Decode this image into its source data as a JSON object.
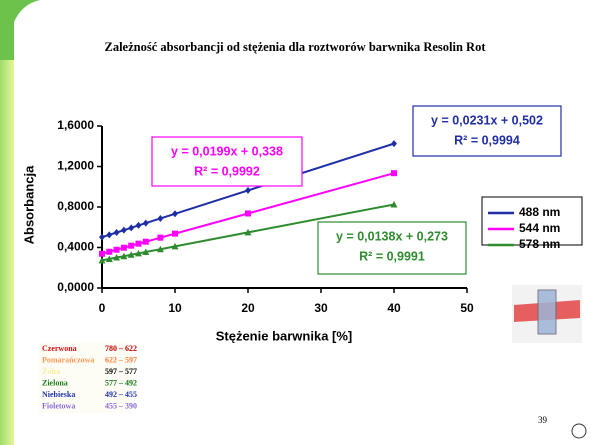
{
  "chart_data": {
    "type": "line",
    "title": "Zależność absorbancji od stężenia dla roztworów barwnika Resolin Rot",
    "xlabel": "Stężenie barwnika [%]",
    "ylabel": "Absorbancja",
    "x": [
      0,
      1,
      2,
      3,
      4,
      5,
      6,
      8,
      10,
      20,
      40
    ],
    "series": [
      {
        "name": "488 nm",
        "color": "#1f2ea6",
        "marker": "diamond",
        "values": [
          0.502,
          0.525,
          0.548,
          0.571,
          0.594,
          0.618,
          0.641,
          0.687,
          0.733,
          0.964,
          1.426
        ]
      },
      {
        "name": "544 nm",
        "color": "#ff00ff",
        "marker": "square",
        "values": [
          0.338,
          0.358,
          0.378,
          0.398,
          0.418,
          0.438,
          0.457,
          0.497,
          0.537,
          0.736,
          1.134
        ]
      },
      {
        "name": "578 nm",
        "color": "#2e8b2e",
        "marker": "triangle",
        "values": [
          0.273,
          0.287,
          0.301,
          0.314,
          0.328,
          0.342,
          0.356,
          0.383,
          0.411,
          0.549,
          0.825
        ]
      }
    ],
    "xlim": [
      0,
      50
    ],
    "xticks": [
      0,
      10,
      20,
      30,
      40,
      50
    ],
    "ylim": [
      0,
      1.6
    ],
    "yticks": [
      {
        "value": 0,
        "label": "0,0000"
      },
      {
        "value": 0.4,
        "label": "0,4000"
      },
      {
        "value": 0.8,
        "label": "0,8000"
      },
      {
        "value": 1.2,
        "label": "1,2000"
      },
      {
        "value": 1.6,
        "label": "1,6000"
      }
    ],
    "annotations": [
      {
        "equation": "y = 0,0231x + 0,502",
        "r2": "R² = 0,9994",
        "color": "#1f2ea6"
      },
      {
        "equation": "y = 0,0199x + 0,338",
        "r2": "R² = 0,9992",
        "color": "#ff00ff"
      },
      {
        "equation": "y = 0,0138x + 0,273",
        "r2": "R² = 0,9991",
        "color": "#2e8b2e"
      }
    ]
  },
  "color_table": [
    {
      "name": "Czerwona",
      "range": "780 – 622",
      "name_color": "#e01010",
      "range_color": "#c00000"
    },
    {
      "name": "Pomarańczowa",
      "range": "622 – 597",
      "name_color": "#ff9955",
      "range_color": "#ff7a33"
    },
    {
      "name": "Żółta",
      "range": "597 – 577",
      "name_color": "#f4f0a0",
      "range_color": "#000000"
    },
    {
      "name": "Zielona",
      "range": "577 – 492",
      "name_color": "#1a7a1a",
      "range_color": "#1a7a1a"
    },
    {
      "name": "Niebieska",
      "range": "492 – 455",
      "name_color": "#2233aa",
      "range_color": "#2233aa"
    },
    {
      "name": "Fioletowa",
      "range": "455 – 390",
      "name_color": "#8a6ad8",
      "range_color": "#8a6ad8"
    }
  ],
  "page_number": "39"
}
